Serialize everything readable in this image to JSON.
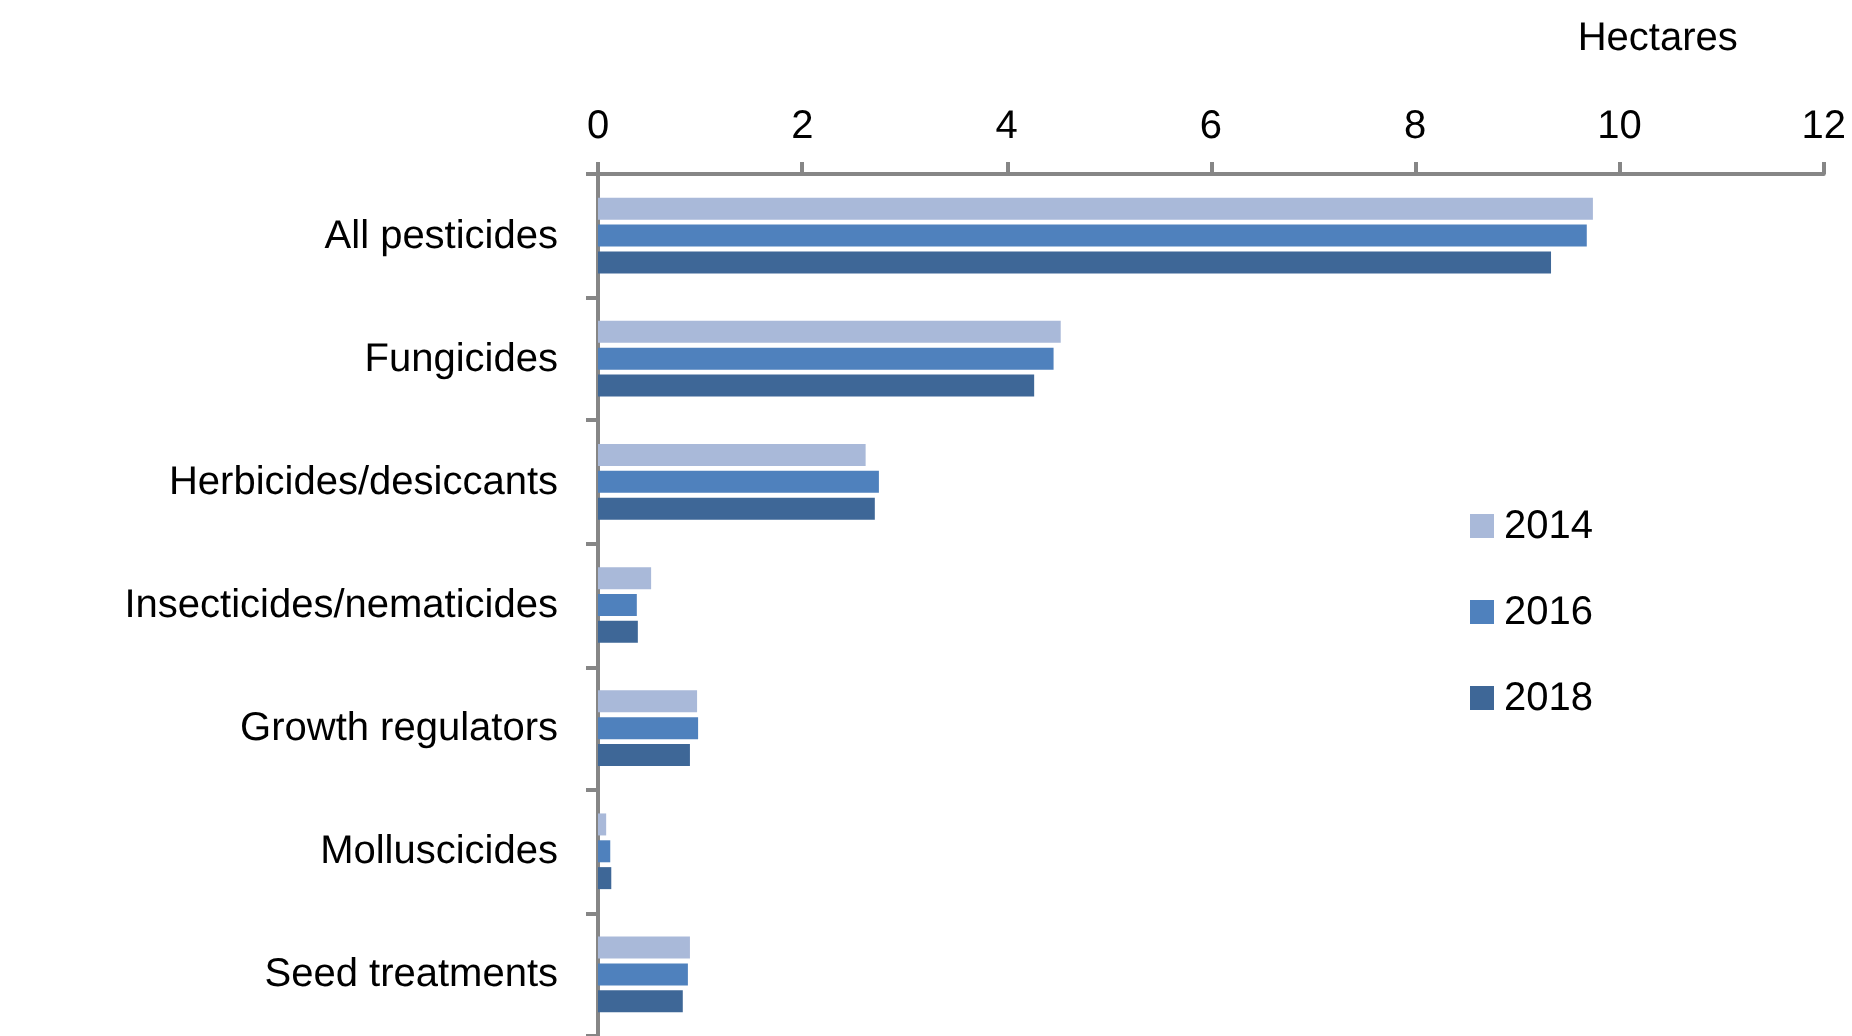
{
  "chart_data": {
    "type": "bar",
    "orientation": "horizontal",
    "xlabel": "Hectares",
    "categories": [
      "All pesticides",
      "Fungicides",
      "Herbicides/desiccants",
      "Insecticides/nematicides",
      "Growth regulators",
      "Molluscicides",
      "Seed treatments"
    ],
    "series": [
      {
        "name": "2014",
        "color": "#a9b9d9",
        "values": [
          9.74,
          4.53,
          2.62,
          0.52,
          0.97,
          0.08,
          0.9
        ]
      },
      {
        "name": "2016",
        "color": "#4f81bd",
        "values": [
          9.68,
          4.46,
          2.75,
          0.38,
          0.98,
          0.12,
          0.88
        ]
      },
      {
        "name": "2018",
        "color": "#3e6797",
        "values": [
          9.33,
          4.27,
          2.71,
          0.39,
          0.9,
          0.13,
          0.83
        ]
      }
    ],
    "xlim": [
      0,
      12
    ],
    "xticks": [
      0,
      2,
      4,
      6,
      8,
      10,
      12
    ],
    "legend": "right"
  }
}
